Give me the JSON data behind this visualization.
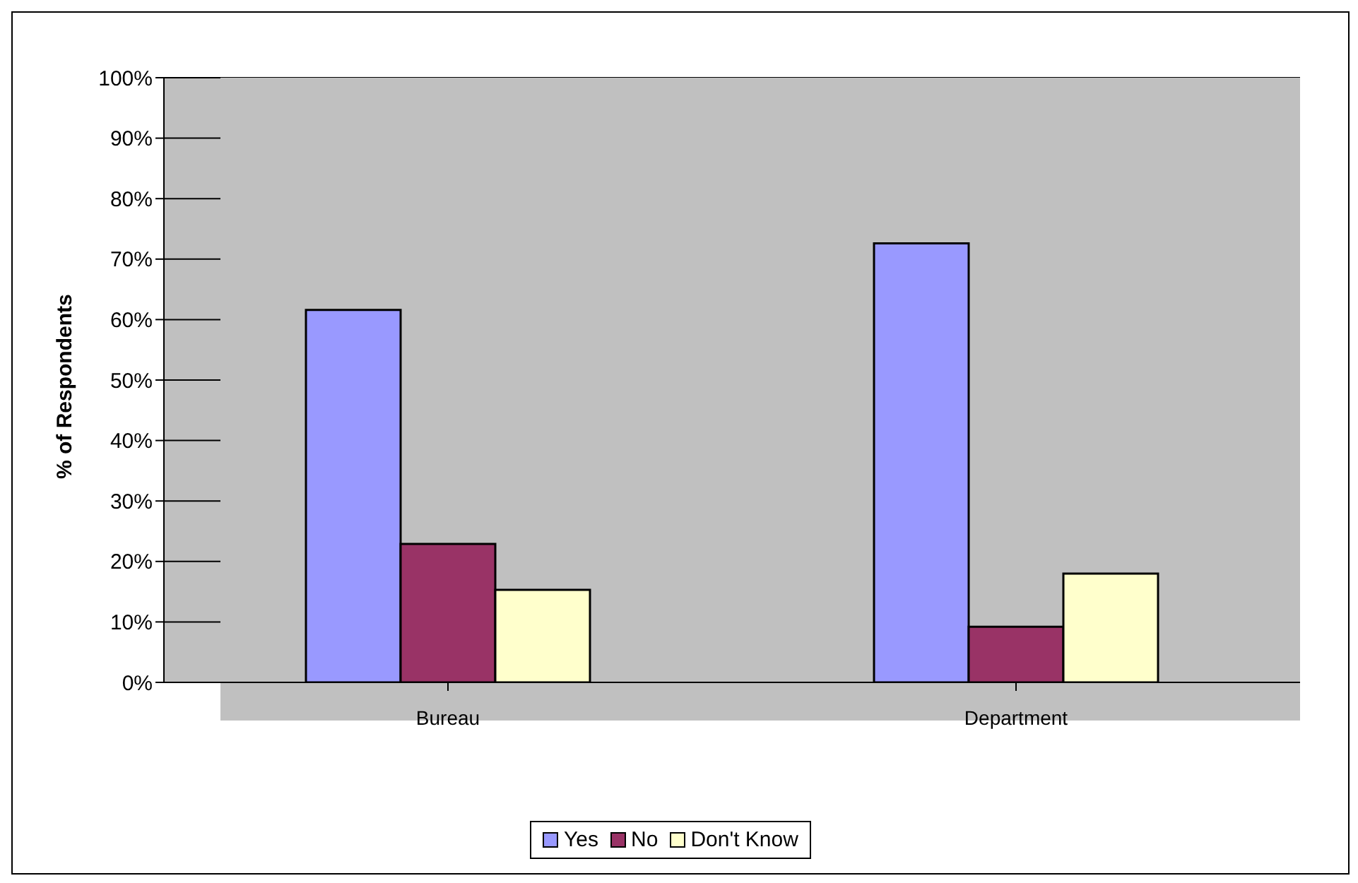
{
  "chart_data": {
    "type": "bar",
    "ylabel": "% of Respondents",
    "categories": [
      "Bureau",
      "Department"
    ],
    "series": [
      {
        "name": "Yes",
        "color": "#9999ff",
        "values": [
          61.6,
          72.6
        ]
      },
      {
        "name": "No",
        "color": "#993366",
        "values": [
          22.9,
          9.2
        ]
      },
      {
        "name": "Don't Know",
        "color": "#ffffcc",
        "values": [
          15.3,
          18.0
        ]
      }
    ],
    "ylim": [
      0,
      100
    ],
    "yticks": [
      {
        "value": 0,
        "label": "0%"
      },
      {
        "value": 10,
        "label": "10%"
      },
      {
        "value": 20,
        "label": "20%"
      },
      {
        "value": 30,
        "label": "30%"
      },
      {
        "value": 40,
        "label": "40%"
      },
      {
        "value": 50,
        "label": "50%"
      },
      {
        "value": 60,
        "label": "60%"
      },
      {
        "value": 70,
        "label": "70%"
      },
      {
        "value": 80,
        "label": "80%"
      },
      {
        "value": 90,
        "label": "90%"
      },
      {
        "value": 100,
        "label": "100%"
      }
    ],
    "grid": "y",
    "legend": "bottom"
  }
}
